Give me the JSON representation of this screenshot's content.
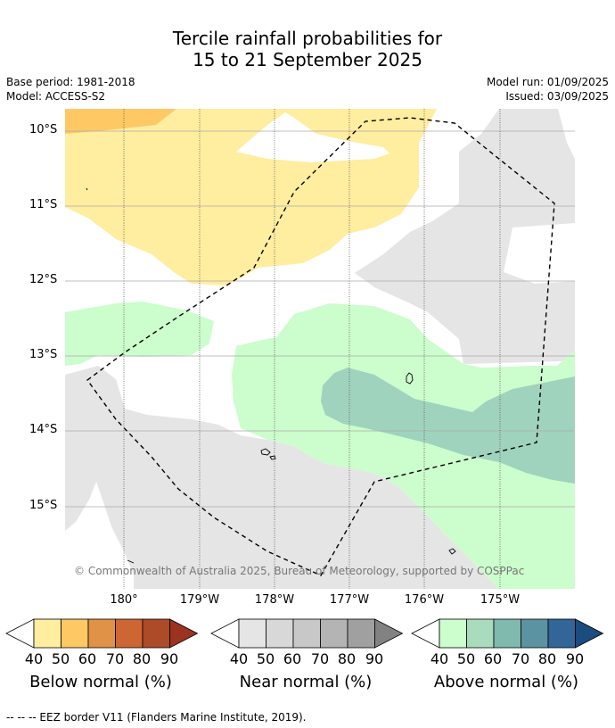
{
  "title": {
    "line1": "Tercile rainfall probabilities for",
    "line2": "15 to 21 September 2025"
  },
  "meta": {
    "base_period": "Base period: 1981-2018",
    "model": "Model: ACCESS-S2",
    "model_run": "Model run: 01/09/2025",
    "issued": "Issued: 03/09/2025"
  },
  "map": {
    "lat_labels": [
      "10°S",
      "11°S",
      "12°S",
      "13°S",
      "14°S",
      "15°S"
    ],
    "lon_labels": [
      "180°",
      "179°W",
      "178°W",
      "177°W",
      "176°W",
      "175°W"
    ],
    "copyright": "© Commonwealth of Australia 2025, Bureau of Meteorology, supported by COSPPac"
  },
  "colorbars": {
    "ticks": [
      "40",
      "50",
      "60",
      "70",
      "80",
      "90"
    ],
    "below": {
      "label": "Below normal (%)",
      "colors": [
        "#ffeda0",
        "#fec965",
        "#e09247",
        "#cd6633",
        "#ad4a28",
        "#9c3220"
      ]
    },
    "near": {
      "label": "Near normal (%)",
      "colors": [
        "#e5e5e5",
        "#d8d8d8",
        "#c8c8c8",
        "#b4b4b4",
        "#a0a0a0",
        "#828282"
      ]
    },
    "above": {
      "label": "Above normal (%)",
      "colors": [
        "#ccfdcc",
        "#a8dcbc",
        "#80b9ad",
        "#5b93a2",
        "#326598",
        "#1b4b7f"
      ]
    }
  },
  "footnote": "--  --  -- EEZ border V11 (Flanders Marine Institute, 2019)."
}
